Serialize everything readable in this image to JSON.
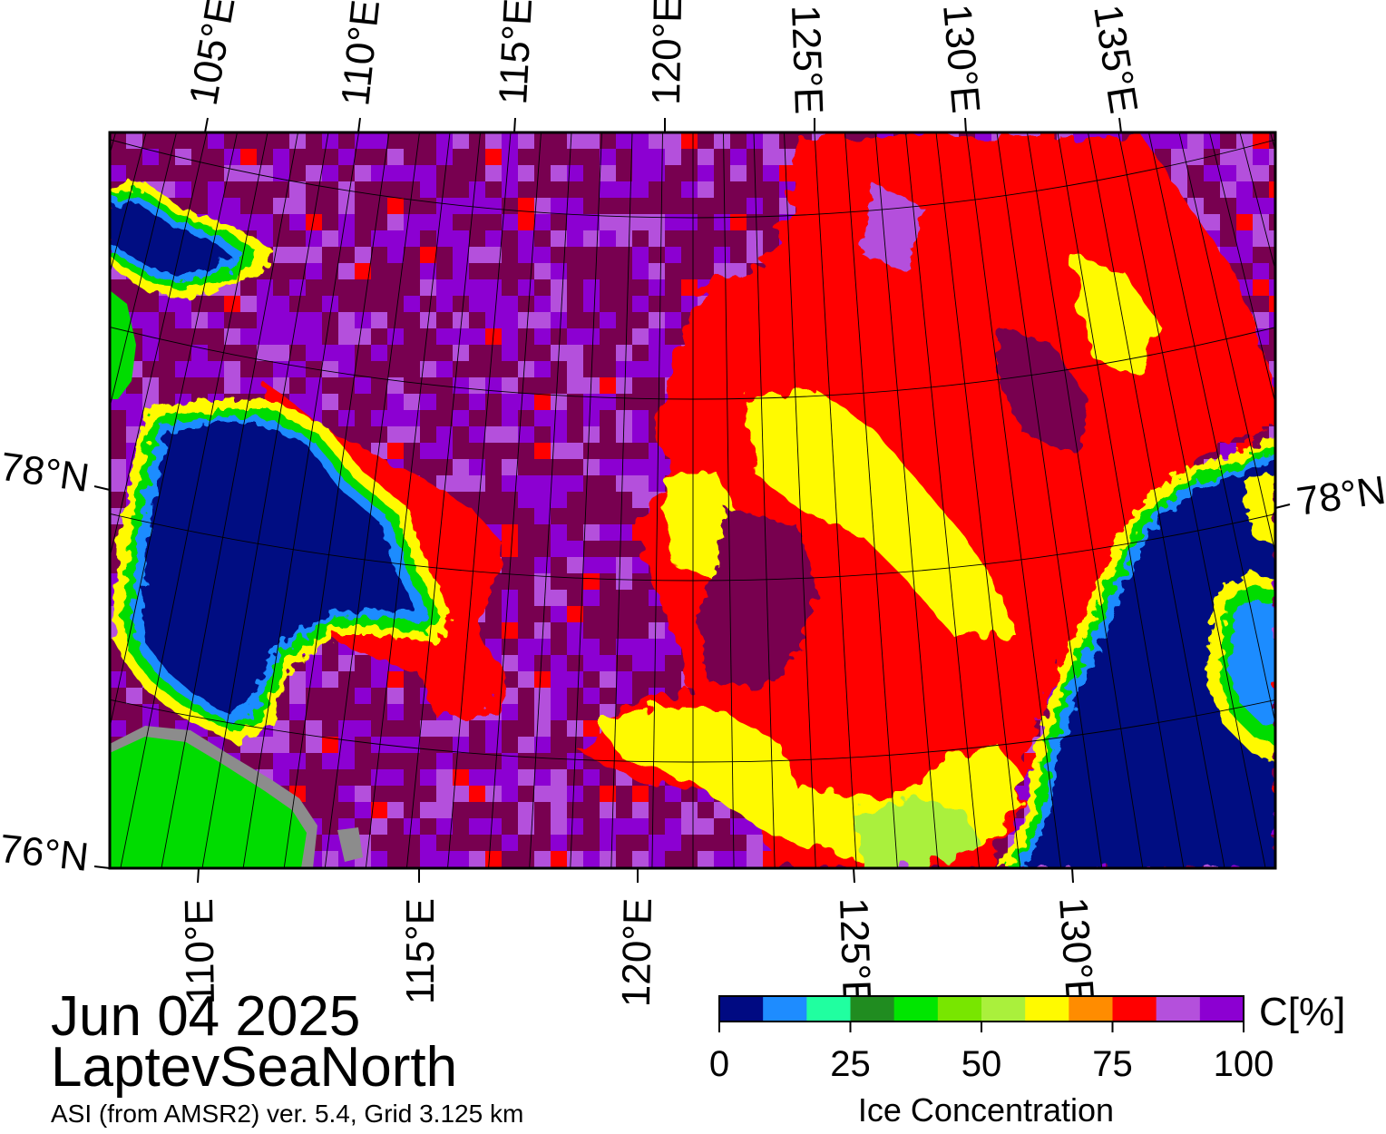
{
  "date": "Jun 04 2025",
  "region": "LaptevSeaNorth",
  "product": "ASI (from AMSR2) ver. 5.4,  Grid 3.125 km",
  "top_lon_labels": [
    "105°E",
    "110°E",
    "115°E",
    "120°E",
    "125°E",
    "130°E",
    "135°E"
  ],
  "bottom_lon_labels": [
    "110°E",
    "115°E",
    "120°E",
    "125°E",
    "130°E"
  ],
  "lat_labels": {
    "left_upper": "78°N",
    "left_lower": "76°N",
    "right": "78°N"
  },
  "colorbar": {
    "title": "Ice Concentration",
    "unit_label": "C[%]",
    "tick_labels": [
      "0",
      "25",
      "50",
      "75",
      "100"
    ],
    "colors": [
      "#000a82",
      "#1e8cff",
      "#20ffa0",
      "#208c20",
      "#00e600",
      "#78e600",
      "#aaf03c",
      "#fffa00",
      "#ff8c00",
      "#ff0000",
      "#b450dc",
      "#8c00d2"
    ]
  },
  "map_colors": {
    "open_water": "#000a82",
    "land": "#00dc00",
    "coast_mask": "#8c8c8c",
    "ice_dark": "#780050",
    "ice_violet": "#8c00d2",
    "ice_lilac": "#b450dc",
    "ice_red": "#ff0000",
    "ice_orange": "#ff8c00",
    "ice_yellow": "#fffa00",
    "ice_green": "#aaf03c"
  }
}
